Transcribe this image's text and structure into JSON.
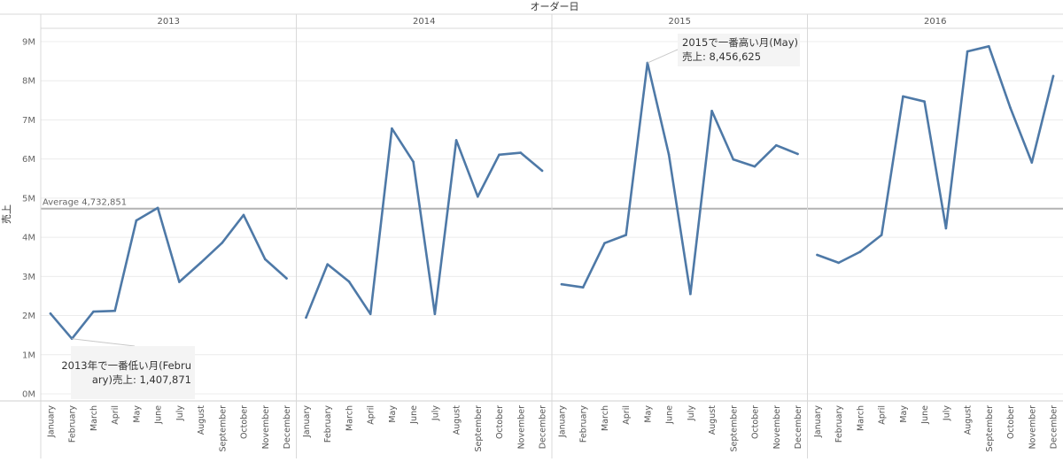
{
  "chart_data": {
    "type": "line",
    "title": "オーダー日",
    "ylabel": "売上",
    "xlabel": "",
    "ylim": [
      0,
      9500000
    ],
    "yticks": [
      0,
      1000000,
      2000000,
      3000000,
      4000000,
      5000000,
      6000000,
      7000000,
      8000000,
      9000000
    ],
    "ytick_labels": [
      "0M",
      "1M",
      "2M",
      "3M",
      "4M",
      "5M",
      "6M",
      "7M",
      "8M",
      "9M"
    ],
    "months": [
      "January",
      "February",
      "March",
      "April",
      "May",
      "June",
      "July",
      "August",
      "September",
      "October",
      "November",
      "December"
    ],
    "grid": true,
    "line_color": "#4e79a7",
    "panels": [
      {
        "year": "2013",
        "values": [
          2050000,
          1407871,
          2100000,
          2120000,
          4430000,
          4750000,
          2860000,
          3350000,
          3860000,
          4570000,
          3440000,
          2950000
        ]
      },
      {
        "year": "2014",
        "values": [
          1950000,
          3310000,
          2870000,
          2040000,
          6780000,
          5930000,
          2040000,
          6480000,
          5040000,
          6110000,
          6160000,
          5700000
        ]
      },
      {
        "year": "2015",
        "values": [
          2800000,
          2720000,
          3850000,
          4060000,
          8456625,
          6110000,
          2550000,
          7230000,
          5990000,
          5810000,
          6350000,
          6130000
        ]
      },
      {
        "year": "2016",
        "values": [
          3550000,
          3350000,
          3630000,
          4060000,
          7600000,
          7470000,
          4230000,
          8750000,
          8880000,
          7310000,
          5910000,
          8120000
        ]
      }
    ],
    "average": {
      "label": "Average 4,732,851",
      "value": 4732851
    },
    "annotations": [
      {
        "panel": 0,
        "month_index": 1,
        "lines": [
          "2013年で一番低い月(Febru",
          "ary)売上: 1,407,871"
        ]
      },
      {
        "panel": 2,
        "month_index": 4,
        "lines": [
          "2015で一番高い月(May)",
          "売上: 8,456,625"
        ]
      }
    ]
  }
}
